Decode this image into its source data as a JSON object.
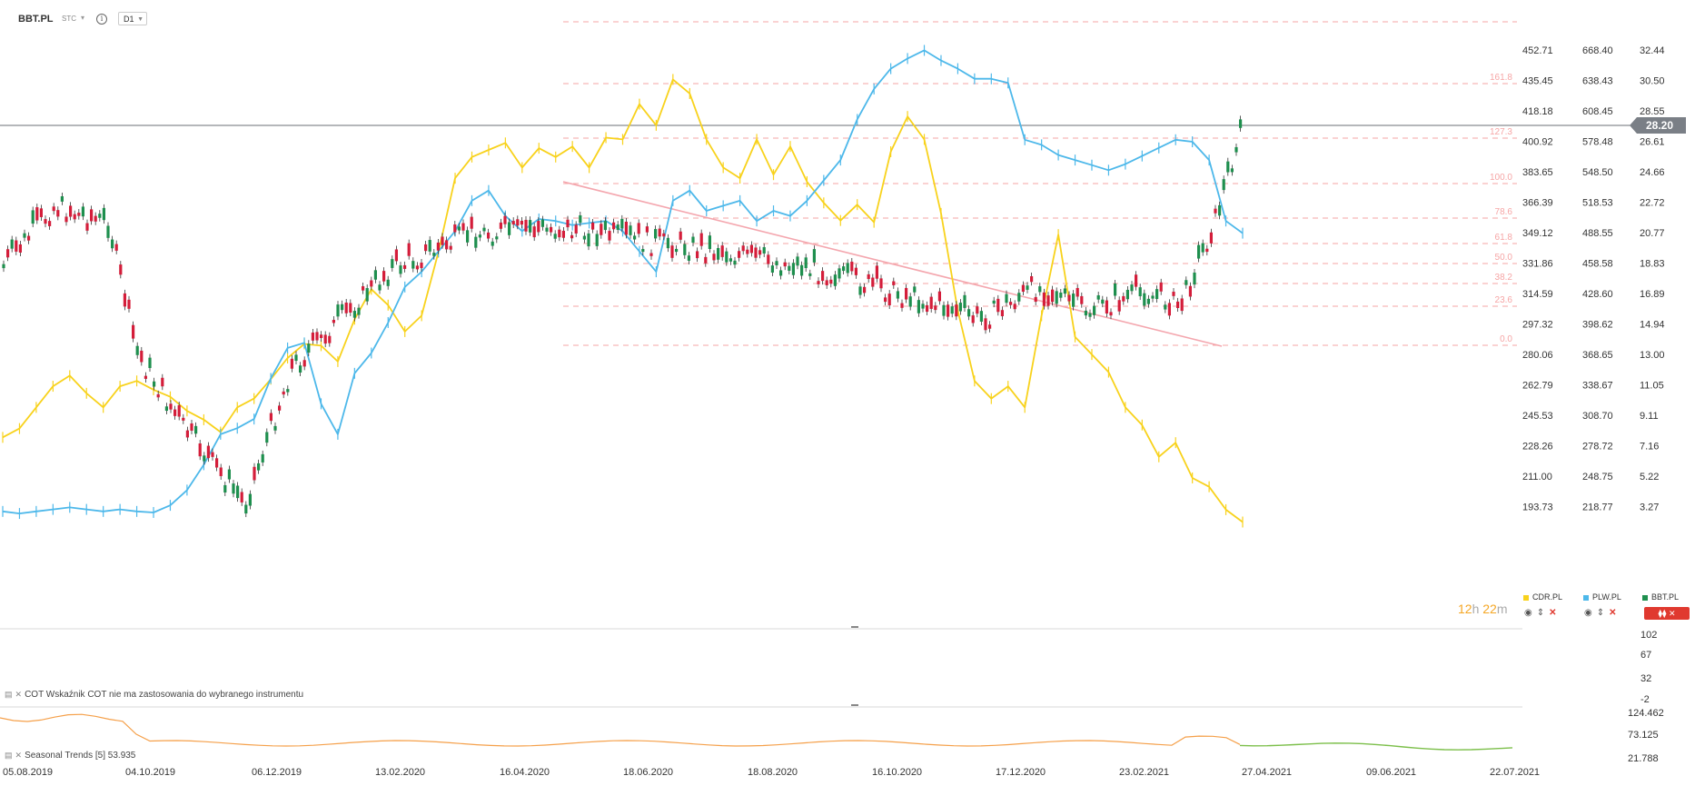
{
  "toolbar": {
    "symbol": "BBT.PL",
    "source": "STC",
    "timeframe": "D1"
  },
  "countdown": {
    "hours": "12",
    "h": "h",
    "minutes": "22",
    "m": "m"
  },
  "current_price_tag": "28.20",
  "legend": [
    {
      "name": "CDR.PL",
      "color": "#f8d21c"
    },
    {
      "name": "PLW.PL",
      "color": "#4db8ea"
    },
    {
      "name": "BBT.PL",
      "color": "#1e8f4e"
    }
  ],
  "indicators": {
    "cot_label": "COT Wskaźnik COT nie ma zastosowania do wybranego instrumentu",
    "seasonal_label": "Seasonal  Trends  [5]  53.935"
  },
  "colors": {
    "cdr": "#f8d21c",
    "plw": "#4db8ea",
    "bbt_up": "#1e8f4e",
    "bbt_down": "#d41d3a",
    "fib": "#f6a5a5",
    "trend": "#f4a6ae",
    "seasonal_orange": "#f5a04a",
    "seasonal_green": "#7cbf4a"
  },
  "chart_data": {
    "type": "line",
    "x_labels": [
      "05.08.2019",
      "04.10.2019",
      "06.12.2019",
      "13.02.2020",
      "16.04.2020",
      "18.06.2020",
      "18.08.2020",
      "16.10.2020",
      "17.12.2020",
      "23.02.2021",
      "27.04.2021",
      "09.06.2021",
      "22.07.2021"
    ],
    "axis_cdr": [
      "452.71",
      "435.45",
      "418.18",
      "400.92",
      "383.65",
      "366.39",
      "349.12",
      "331.86",
      "314.59",
      "297.32",
      "280.06",
      "262.79",
      "245.53",
      "228.26",
      "211.00",
      "193.73"
    ],
    "axis_plw": [
      "668.40",
      "638.43",
      "608.45",
      "578.48",
      "548.50",
      "518.53",
      "488.55",
      "458.58",
      "428.60",
      "398.62",
      "368.65",
      "338.67",
      "308.70",
      "278.72",
      "248.75",
      "218.77"
    ],
    "axis_bbt": [
      "32.44",
      "30.50",
      "28.55",
      "26.61",
      "24.66",
      "22.72",
      "20.77",
      "18.83",
      "16.89",
      "14.94",
      "13.00",
      "11.05",
      "9.11",
      "7.16",
      "5.22",
      "3.27"
    ],
    "fib_levels": [
      "161.8",
      "127.3",
      "100.0",
      "78.6",
      "61.8",
      "50.0",
      "38.2",
      "23.6",
      "0.0"
    ],
    "cot_axis": [
      "102",
      "67",
      "32",
      "-2"
    ],
    "seasonal_axis": [
      "124.462",
      "73.125",
      "21.788"
    ],
    "series": [
      {
        "name": "CDR.PL",
        "points": [
          [
            0,
            233
          ],
          [
            1,
            238
          ],
          [
            2,
            250
          ],
          [
            3,
            262
          ],
          [
            4,
            268
          ],
          [
            5,
            258
          ],
          [
            6,
            250
          ],
          [
            7,
            262
          ],
          [
            8,
            265
          ],
          [
            9,
            260
          ],
          [
            10,
            256
          ],
          [
            11,
            248
          ],
          [
            12,
            243
          ],
          [
            13,
            236
          ],
          [
            14,
            250
          ],
          [
            15,
            255
          ],
          [
            16,
            266
          ],
          [
            17,
            278
          ],
          [
            18,
            286
          ],
          [
            19,
            285
          ],
          [
            20,
            276
          ],
          [
            21,
            300
          ],
          [
            22,
            317
          ],
          [
            23,
            308
          ],
          [
            24,
            293
          ],
          [
            25,
            302
          ],
          [
            26,
            338
          ],
          [
            27,
            380
          ],
          [
            28,
            392
          ],
          [
            29,
            396
          ],
          [
            30,
            400
          ],
          [
            31,
            386
          ],
          [
            32,
            397
          ],
          [
            33,
            392
          ],
          [
            34,
            398
          ],
          [
            35,
            386
          ],
          [
            36,
            403
          ],
          [
            37,
            402
          ],
          [
            38,
            422
          ],
          [
            39,
            410
          ],
          [
            40,
            436
          ],
          [
            41,
            428
          ],
          [
            42,
            402
          ],
          [
            43,
            386
          ],
          [
            44,
            380
          ],
          [
            45,
            402
          ],
          [
            46,
            382
          ],
          [
            47,
            398
          ],
          [
            48,
            378
          ],
          [
            49,
            366
          ],
          [
            50,
            356
          ],
          [
            51,
            365
          ],
          [
            52,
            355
          ],
          [
            53,
            395
          ],
          [
            54,
            415
          ],
          [
            55,
            402
          ],
          [
            56,
            360
          ],
          [
            57,
            305
          ],
          [
            58,
            265
          ],
          [
            59,
            255
          ],
          [
            60,
            262
          ],
          [
            61,
            250
          ],
          [
            62,
            302
          ],
          [
            63,
            348
          ],
          [
            64,
            290
          ],
          [
            65,
            280
          ],
          [
            66,
            270
          ],
          [
            67,
            250
          ],
          [
            68,
            240
          ],
          [
            69,
            222
          ],
          [
            70,
            230
          ],
          [
            71,
            210
          ],
          [
            72,
            205
          ],
          [
            73,
            192
          ],
          [
            74,
            185
          ]
        ]
      },
      {
        "name": "PLW.PL",
        "points": [
          [
            0,
            214
          ],
          [
            1,
            212
          ],
          [
            2,
            214
          ],
          [
            3,
            216
          ],
          [
            4,
            218
          ],
          [
            5,
            216
          ],
          [
            6,
            214
          ],
          [
            7,
            216
          ],
          [
            8,
            214
          ],
          [
            9,
            213
          ],
          [
            10,
            220
          ],
          [
            11,
            235
          ],
          [
            12,
            260
          ],
          [
            13,
            290
          ],
          [
            14,
            296
          ],
          [
            15,
            305
          ],
          [
            16,
            345
          ],
          [
            17,
            375
          ],
          [
            18,
            380
          ],
          [
            19,
            320
          ],
          [
            20,
            290
          ],
          [
            21,
            350
          ],
          [
            22,
            370
          ],
          [
            23,
            400
          ],
          [
            24,
            435
          ],
          [
            25,
            450
          ],
          [
            26,
            470
          ],
          [
            27,
            490
          ],
          [
            28,
            520
          ],
          [
            29,
            530
          ],
          [
            30,
            505
          ],
          [
            31,
            490
          ],
          [
            32,
            502
          ],
          [
            33,
            500
          ],
          [
            34,
            496
          ],
          [
            35,
            498
          ],
          [
            36,
            500
          ],
          [
            37,
            490
          ],
          [
            38,
            470
          ],
          [
            39,
            450
          ],
          [
            40,
            520
          ],
          [
            41,
            530
          ],
          [
            42,
            510
          ],
          [
            43,
            515
          ],
          [
            44,
            520
          ],
          [
            45,
            500
          ],
          [
            46,
            510
          ],
          [
            47,
            505
          ],
          [
            48,
            520
          ],
          [
            49,
            540
          ],
          [
            50,
            560
          ],
          [
            51,
            600
          ],
          [
            52,
            630
          ],
          [
            53,
            650
          ],
          [
            54,
            660
          ],
          [
            55,
            668
          ],
          [
            56,
            658
          ],
          [
            57,
            650
          ],
          [
            58,
            640
          ],
          [
            59,
            640
          ],
          [
            60,
            636
          ],
          [
            61,
            580
          ],
          [
            62,
            575
          ],
          [
            63,
            565
          ],
          [
            64,
            560
          ],
          [
            65,
            555
          ],
          [
            66,
            550
          ],
          [
            67,
            556
          ],
          [
            68,
            564
          ],
          [
            69,
            572
          ],
          [
            70,
            580
          ],
          [
            71,
            578
          ],
          [
            72,
            560
          ],
          [
            73,
            500
          ],
          [
            74,
            488
          ]
        ]
      }
    ]
  }
}
